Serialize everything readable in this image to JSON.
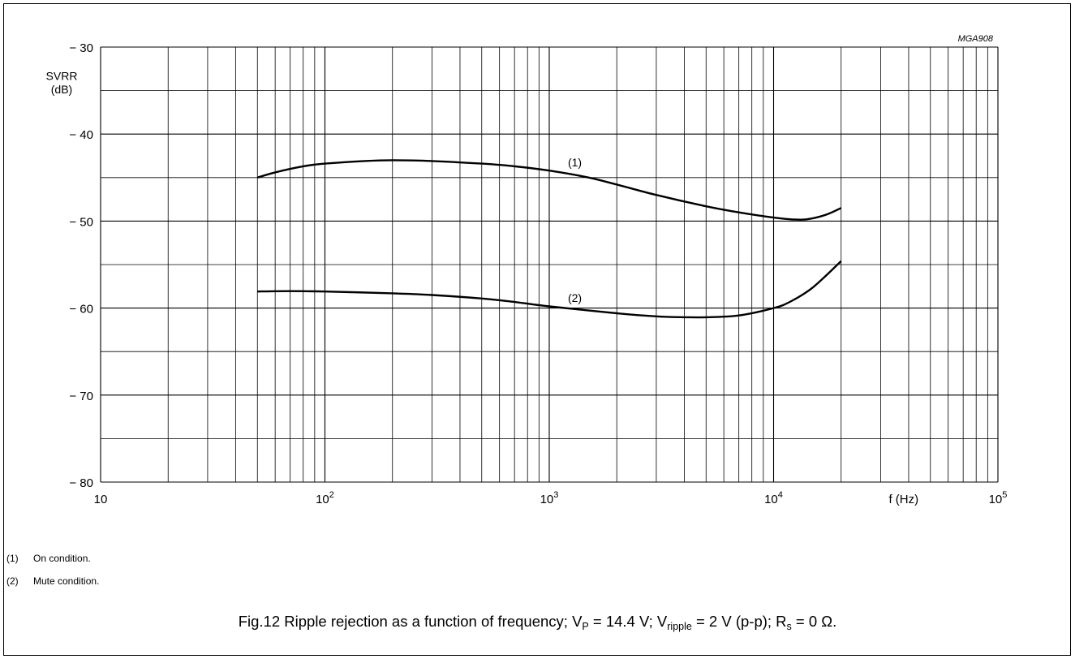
{
  "chart_data": {
    "type": "line",
    "code": "MGA908",
    "ylabel": "SVRR",
    "yunit": "(dB)",
    "xlabel": "f  (Hz)",
    "xscale": "log",
    "xlim": [
      10,
      100000
    ],
    "ylim": [
      -80,
      -30
    ],
    "grid": true,
    "y_ticks": [
      {
        "value": -30,
        "label": "− 30"
      },
      {
        "value": -40,
        "label": "− 40"
      },
      {
        "value": -50,
        "label": "− 50"
      },
      {
        "value": -60,
        "label": "− 60"
      },
      {
        "value": -70,
        "label": "− 70"
      },
      {
        "value": -80,
        "label": "− 80"
      }
    ],
    "y_minor_gridlines": [
      -35,
      -45,
      -55,
      -65,
      -75
    ],
    "x_ticks": [
      {
        "value": 10,
        "base": "10",
        "exp": ""
      },
      {
        "value": 100,
        "base": "10",
        "exp": "2"
      },
      {
        "value": 1000,
        "base": "10",
        "exp": "3"
      },
      {
        "value": 10000,
        "base": "10",
        "exp": "4"
      },
      {
        "value": 100000,
        "base": "10",
        "exp": "5"
      }
    ],
    "series": [
      {
        "name": "(1)",
        "label_at": [
          1300,
          -43.7
        ],
        "points": [
          [
            50,
            -45
          ],
          [
            60,
            -44.4
          ],
          [
            80,
            -43.7
          ],
          [
            100,
            -43.4
          ],
          [
            150,
            -43.1
          ],
          [
            200,
            -43.0
          ],
          [
            300,
            -43.1
          ],
          [
            500,
            -43.4
          ],
          [
            700,
            -43.7
          ],
          [
            1000,
            -44.2
          ],
          [
            1500,
            -45.0
          ],
          [
            2000,
            -45.8
          ],
          [
            3000,
            -47.0
          ],
          [
            5000,
            -48.3
          ],
          [
            7000,
            -49.0
          ],
          [
            10000,
            -49.6
          ],
          [
            12000,
            -49.8
          ],
          [
            14000,
            -49.8
          ],
          [
            17000,
            -49.3
          ],
          [
            20000,
            -48.5
          ]
        ]
      },
      {
        "name": "(2)",
        "label_at": [
          1300,
          -59.3
        ],
        "points": [
          [
            50,
            -58.1
          ],
          [
            70,
            -58.05
          ],
          [
            100,
            -58.1
          ],
          [
            200,
            -58.3
          ],
          [
            300,
            -58.5
          ],
          [
            500,
            -58.9
          ],
          [
            700,
            -59.3
          ],
          [
            1000,
            -59.8
          ],
          [
            2000,
            -60.6
          ],
          [
            3000,
            -60.95
          ],
          [
            4000,
            -61.05
          ],
          [
            5000,
            -61.05
          ],
          [
            7000,
            -60.85
          ],
          [
            10000,
            -60.0
          ],
          [
            12000,
            -59.2
          ],
          [
            15000,
            -57.6
          ],
          [
            20000,
            -54.6
          ]
        ]
      }
    ]
  },
  "notes": [
    {
      "num": "(1)",
      "text": "On condition."
    },
    {
      "num": "(2)",
      "text": "Mute condition."
    }
  ],
  "caption": {
    "a": "Fig.12  Ripple rejection as a function of frequency; V",
    "a_sub": "P",
    "b": " = 14.4 V; V",
    "b_sub": "ripple",
    "c": " = 2 V (p-p); R",
    "c_sub": "s",
    "d": " = 0 Ω."
  }
}
